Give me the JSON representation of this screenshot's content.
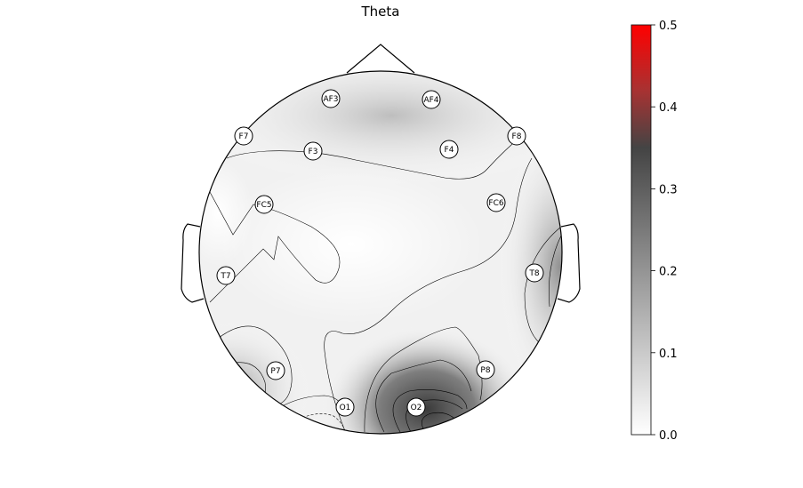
{
  "title": "Theta",
  "electrodes": [
    {
      "id": "AF3"
    },
    {
      "id": "AF4"
    },
    {
      "id": "F7"
    },
    {
      "id": "F3"
    },
    {
      "id": "F4"
    },
    {
      "id": "F8"
    },
    {
      "id": "FC5"
    },
    {
      "id": "FC6"
    },
    {
      "id": "T7"
    },
    {
      "id": "T8"
    },
    {
      "id": "P7"
    },
    {
      "id": "P8"
    },
    {
      "id": "O1"
    },
    {
      "id": "O2"
    }
  ],
  "colorbar": {
    "min": 0.0,
    "max": 0.5,
    "ticks": [
      "0.0",
      "0.1",
      "0.2",
      "0.3",
      "0.4",
      "0.5"
    ],
    "stops": [
      {
        "value": 0.0,
        "color": "#ffffff"
      },
      {
        "value": 0.35,
        "color": "#444444"
      },
      {
        "value": 0.42,
        "color": "#a83232"
      },
      {
        "value": 0.5,
        "color": "#ff0000"
      }
    ]
  }
}
